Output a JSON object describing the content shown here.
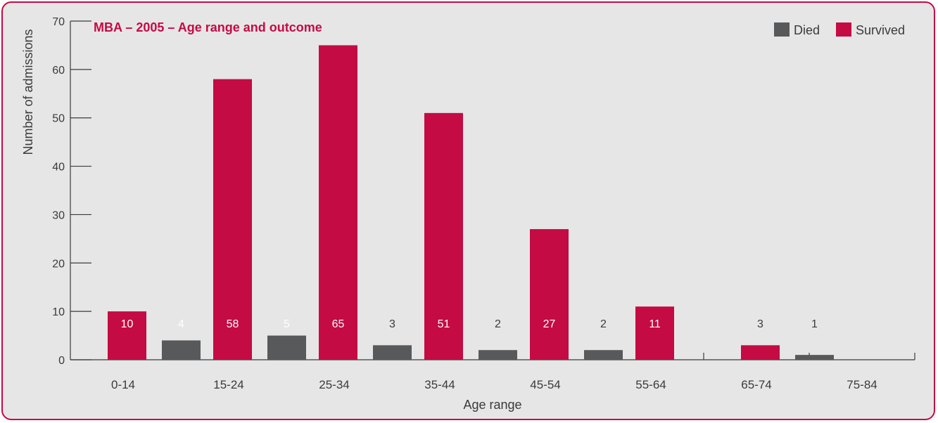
{
  "chart_data": {
    "type": "bar",
    "title": "MBA – 2005 – Age range and outcome",
    "xlabel": "Age range",
    "ylabel": "Number of admissions",
    "ylim": [
      0,
      70
    ],
    "yticks": [
      0,
      10,
      20,
      30,
      40,
      50,
      60,
      70
    ],
    "grid": false,
    "legend_position": "top-right",
    "categories": [
      "0-14",
      "15-24",
      "25-34",
      "35-44",
      "45-54",
      "55-64",
      "65-74",
      "75-84"
    ],
    "series": [
      {
        "name": "Died",
        "color": "#58595b",
        "values": [
          0,
          4,
          5,
          3,
          2,
          2,
          0,
          1
        ],
        "labels": [
          "",
          "4",
          "5",
          "3",
          "2",
          "2",
          "",
          "1"
        ]
      },
      {
        "name": "Survived",
        "color": "#c40b43",
        "values": [
          10,
          58,
          65,
          51,
          27,
          11,
          3,
          0
        ],
        "labels": [
          "10",
          "58",
          "65",
          "51",
          "27",
          "11",
          "3",
          ""
        ]
      }
    ]
  }
}
